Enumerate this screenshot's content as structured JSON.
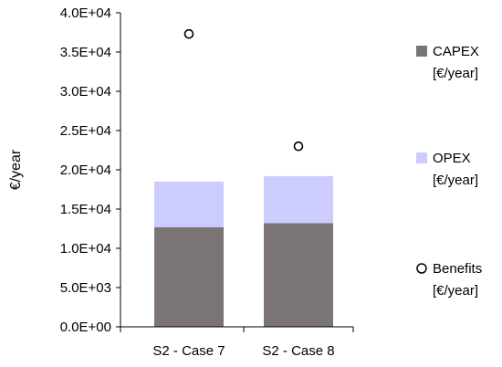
{
  "chart_data": {
    "type": "bar",
    "stacked": true,
    "categories": [
      "S2 - Case 7",
      "S2 - Case 8"
    ],
    "series": [
      {
        "name": "CAPEX [€/year]",
        "legend_lines": [
          "CAPEX",
          "[€/year]"
        ],
        "kind": "bar",
        "color": "#7b7474",
        "values": [
          12700,
          13200
        ]
      },
      {
        "name": "OPEX [€/year]",
        "legend_lines": [
          "OPEX",
          "[€/year]"
        ],
        "kind": "bar",
        "color": "#ccccff",
        "values": [
          5800,
          6000
        ]
      },
      {
        "name": "Benefits [€/year]",
        "legend_lines": [
          "Benefits",
          "[€/year]"
        ],
        "kind": "marker",
        "marker": "open-circle",
        "color": "#000000",
        "values": [
          37300,
          23000
        ]
      }
    ],
    "ylabel": "€/year",
    "ylim": [
      0,
      40000
    ],
    "yticks": [
      0,
      5000,
      10000,
      15000,
      20000,
      25000,
      30000,
      35000,
      40000
    ],
    "ytick_labels": [
      "0.0E+00",
      "5.0E+03",
      "1.0E+04",
      "1.5E+04",
      "2.0E+04",
      "2.5E+04",
      "3.0E+04",
      "3.5E+04",
      "4.0E+04"
    ],
    "grid": false,
    "legend_position": "right"
  }
}
